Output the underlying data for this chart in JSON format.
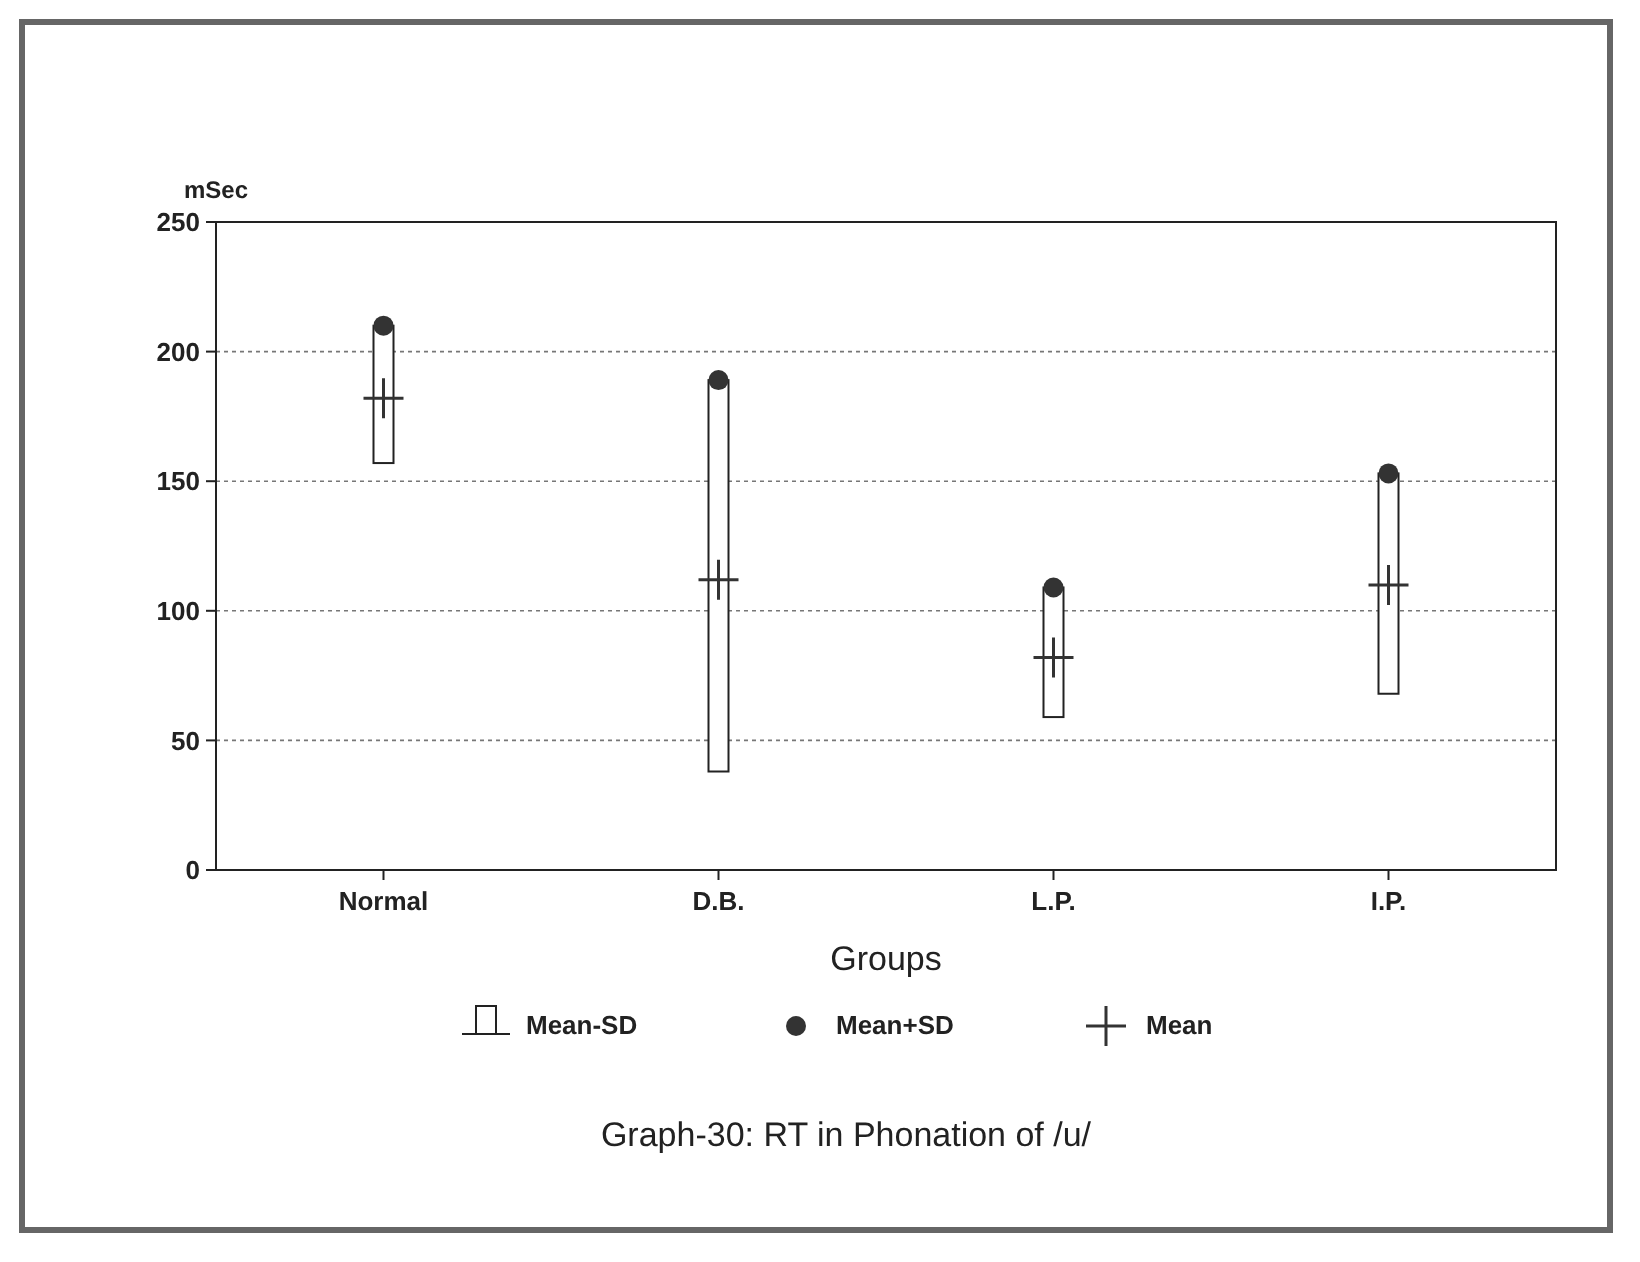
{
  "chart_data": {
    "type": "bar",
    "title": "Graph-30: RT in Phonation of /u/",
    "xlabel": "Groups",
    "ylabel": "mSec",
    "categories": [
      "Normal",
      "D.B.",
      "L.P.",
      "I.P."
    ],
    "series": [
      {
        "name": "Mean-SD",
        "type": "bar",
        "color": "#ffffff",
        "base": [
          157,
          38,
          59,
          68
        ],
        "values": [
          53,
          151,
          50,
          85
        ]
      },
      {
        "name": "Mean+SD",
        "type": "scatter",
        "marker": "circle",
        "color": "#333333",
        "x": [
          "Normal",
          "D.B.",
          "L.P.",
          "I.P."
        ],
        "values": [
          210,
          189,
          109,
          153
        ]
      },
      {
        "name": "Mean",
        "type": "scatter",
        "marker": "cross",
        "color": "#333333",
        "x": [
          "Normal",
          "D.B.",
          "L.P.",
          "I.P."
        ],
        "values": [
          182,
          112,
          82,
          110
        ]
      }
    ],
    "ylim": [
      0,
      250
    ],
    "yticks": [
      0,
      50,
      100,
      150,
      200,
      250
    ],
    "grid": "y",
    "legend": "bottom"
  }
}
